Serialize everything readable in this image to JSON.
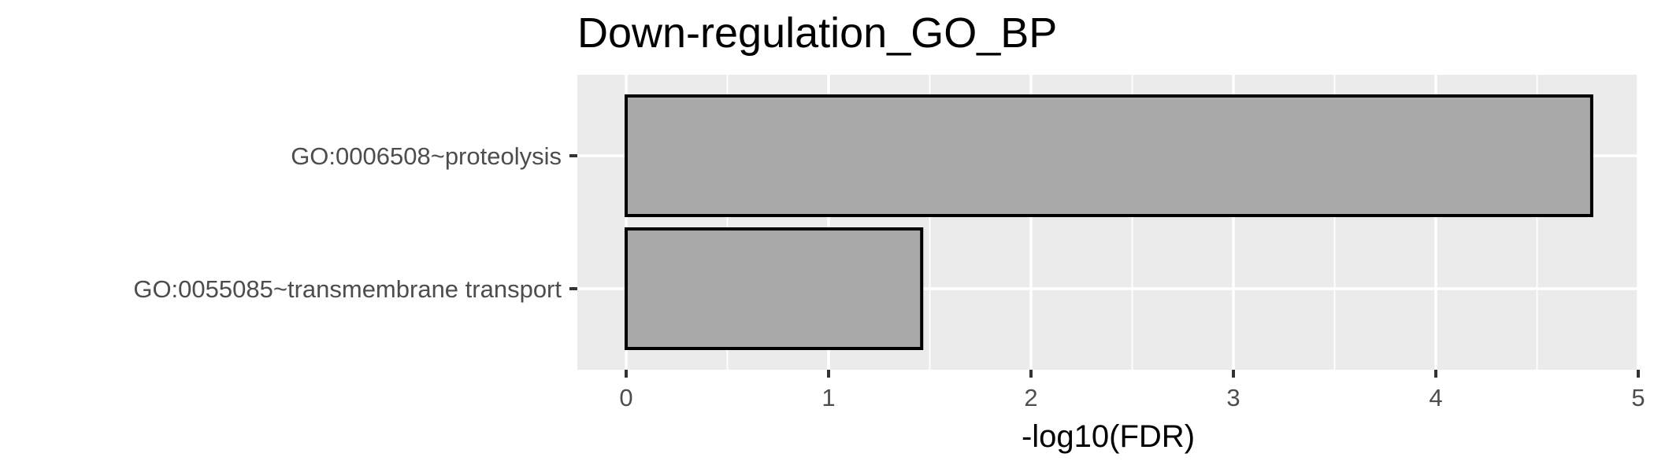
{
  "chart_data": {
    "type": "bar",
    "orientation": "horizontal",
    "title": "Down-regulation_GO_BP",
    "xlabel": "-log10(FDR)",
    "ylabel": "",
    "categories": [
      "GO:0006508~proteolysis",
      "GO:0055085~transmembrane transport"
    ],
    "values": [
      4.77,
      1.46
    ],
    "xlim": [
      0,
      5
    ],
    "xticks": [
      0,
      1,
      2,
      3,
      4,
      5
    ],
    "grid": true,
    "legend": "none",
    "colors": {
      "bar_fill": "#a9a9a9",
      "bar_stroke": "#000000",
      "panel_background": "#ebebeb",
      "grid": "#ffffff"
    }
  }
}
